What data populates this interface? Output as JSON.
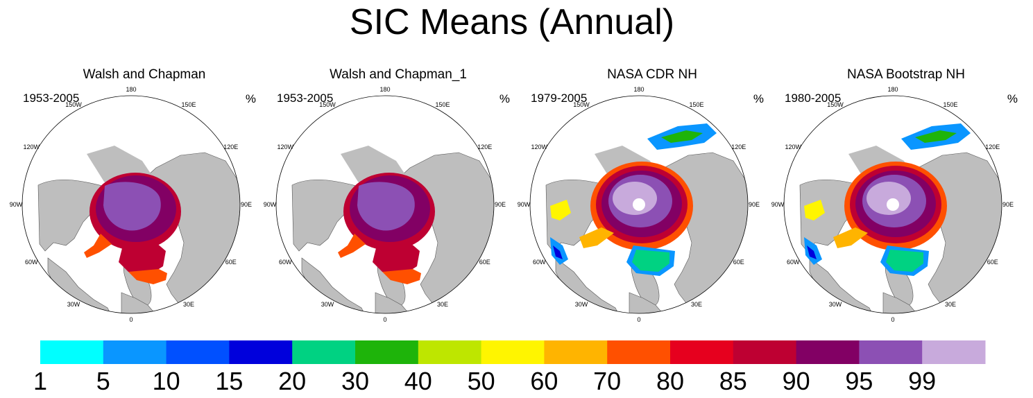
{
  "title": "SIC Means (Annual)",
  "panels": [
    {
      "title": "Walsh and Chapman",
      "period": "1953-2005",
      "unit": "%",
      "dataset": "walsh"
    },
    {
      "title": "Walsh and Chapman_1",
      "period": "1953-2005",
      "unit": "%",
      "dataset": "walsh"
    },
    {
      "title": "NASA CDR NH",
      "period": "1979-2005",
      "unit": "%",
      "dataset": "nasa"
    },
    {
      "title": "NASA Bootstrap NH",
      "period": "1980-2005",
      "unit": "%",
      "dataset": "nasa"
    }
  ],
  "longitude_labels": [
    "180",
    "150E",
    "120E",
    "90E",
    "60E",
    "30E",
    "0",
    "30W",
    "60W",
    "90W",
    "120W",
    "150W"
  ],
  "colorbar": {
    "ticks": [
      "1",
      "5",
      "10",
      "15",
      "20",
      "30",
      "40",
      "50",
      "60",
      "70",
      "80",
      "85",
      "90",
      "95",
      "99"
    ],
    "colors": [
      "#00ffff",
      "#0a96ff",
      "#0050ff",
      "#0000dc",
      "#00d282",
      "#1eb40a",
      "#bee600",
      "#fff500",
      "#ffb400",
      "#ff5000",
      "#e6001e",
      "#be0032",
      "#820064",
      "#8c50b4",
      "#c8aadc"
    ]
  },
  "map_colors": {
    "land": "#bebebe",
    "ocean": "#ffffff",
    "coast": "#555555"
  }
}
